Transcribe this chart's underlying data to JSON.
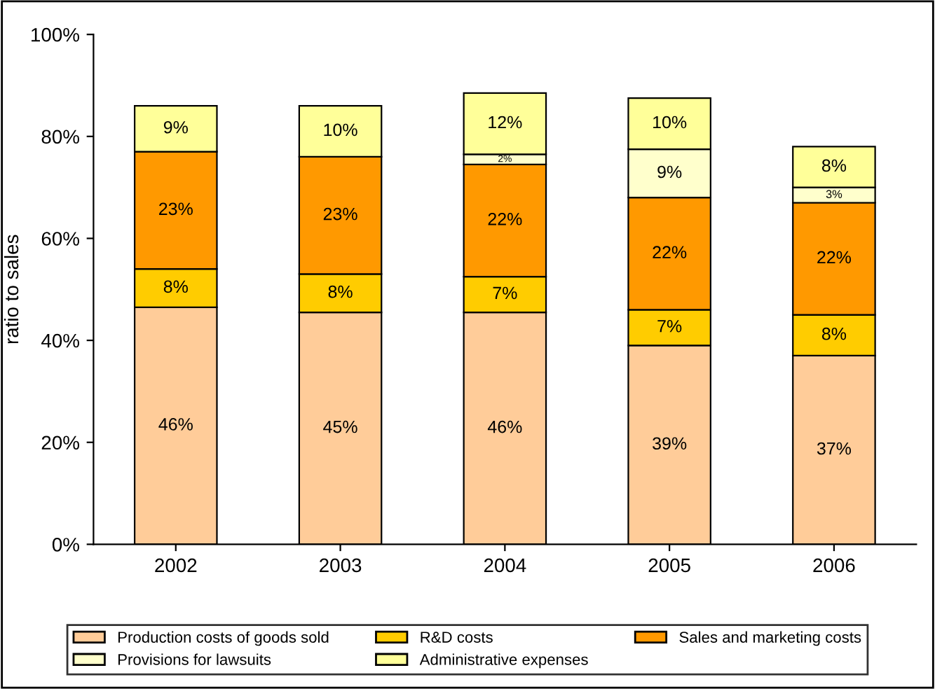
{
  "chart_data": {
    "type": "bar",
    "stacked": true,
    "ylabel": "ratio to sales",
    "categories": [
      "2002",
      "2003",
      "2004",
      "2005",
      "2006"
    ],
    "series": [
      {
        "name": "Production costs of goods sold",
        "color": "#ffcc99",
        "values": [
          46.5,
          45.5,
          45.5,
          39,
          37
        ],
        "value_labels": [
          "46%",
          "45%",
          "46%",
          "39%",
          "37%"
        ]
      },
      {
        "name": "R&D costs",
        "color": "#ffcc00",
        "values": [
          7.5,
          7.5,
          7,
          7,
          8
        ],
        "value_labels": [
          "8%",
          "8%",
          "7%",
          "7%",
          "8%"
        ]
      },
      {
        "name": "Sales and marketing costs",
        "color": "#ff9900",
        "values": [
          23,
          23,
          22,
          22,
          22
        ],
        "value_labels": [
          "23%",
          "23%",
          "22%",
          "22%",
          "22%"
        ]
      },
      {
        "name": "Provisions for lawsuits",
        "color": "#ffffcc",
        "values": [
          null,
          null,
          2,
          9.5,
          3
        ],
        "value_labels": [
          null,
          null,
          "2%",
          "9%",
          "3%"
        ]
      },
      {
        "name": "Administrative expenses",
        "color": "#ffff99",
        "values": [
          9,
          10,
          12,
          10,
          8
        ],
        "value_labels": [
          "9%",
          "10%",
          "12%",
          "10%",
          "8%"
        ]
      }
    ],
    "ylim": [
      0,
      100
    ],
    "yticks": [
      {
        "value": 0,
        "label": "0%"
      },
      {
        "value": 20,
        "label": "20%"
      },
      {
        "value": 40,
        "label": "40%"
      },
      {
        "value": 60,
        "label": "60%"
      },
      {
        "value": 80,
        "label": "80%"
      },
      {
        "value": 100,
        "label": "100%"
      }
    ],
    "legend": "bottom",
    "grid": false
  }
}
